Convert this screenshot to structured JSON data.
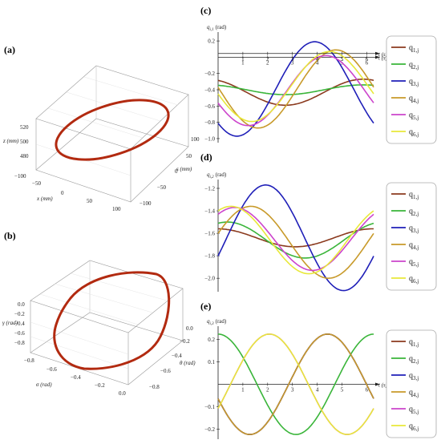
{
  "panel_labels": {
    "a": "(a)",
    "b": "(b)",
    "c": "(c)",
    "d": "(d)",
    "e": "(e)"
  },
  "chart_data": [
    {
      "id": "a",
      "type": "3d-line",
      "title": "",
      "xlabel": "x (mm)",
      "ylabel": "s (mm)",
      "zlabel": "z (mm)",
      "x_ticks": [
        "−100",
        "−50",
        "0",
        "50",
        "100"
      ],
      "y_ticks": [
        "−100",
        "−50",
        "0",
        "50",
        "100"
      ],
      "z_ticks": [
        "480",
        "500",
        "520"
      ],
      "xlim": [
        -100,
        100
      ],
      "ylim": [
        -100,
        100
      ],
      "zlim": [
        470,
        530
      ],
      "series": [
        {
          "color": "#b22a10"
        }
      ]
    },
    {
      "id": "b",
      "type": "3d-line",
      "title": "",
      "xlabel": "σ (rad)",
      "ylabel": "θ (rad)",
      "zlabel": "γ (rad)",
      "x_ticks": [
        "−0.8",
        "−0.6",
        "−0.4",
        "−0.2",
        "0.0"
      ],
      "y_ticks": [
        "−0.8",
        "−0.6",
        "−0.4",
        "−0.2",
        "0.0"
      ],
      "z_ticks": [
        "−0.8",
        "−0.6",
        "−0.4",
        "−0.2",
        "0.0"
      ],
      "series": [
        {
          "color": "#b22a10"
        }
      ]
    },
    {
      "id": "c",
      "type": "line",
      "ylabel": "q",
      "ylabel_sub": "i,1",
      "ylabel_unit": "(rad)",
      "xlabel": "t (s)",
      "x_ticks": [
        1,
        2,
        3,
        4,
        5,
        6
      ],
      "y_ticks": [
        0.2,
        -0.2,
        -0.4,
        -0.6,
        -0.8,
        -1.0
      ],
      "y_tick_labels": [
        "0.2",
        "−0.2",
        "−0.4",
        "−0.6",
        "−0.8",
        "−1.0"
      ],
      "xlim": [
        0,
        6.28
      ],
      "ylim": [
        -1.05,
        0.27
      ],
      "series": [
        {
          "color": "#8b3a1e",
          "values": "-0.43 + 0.16*sin(t + 2.0)"
        },
        {
          "color": "#3ab53a",
          "values": "-0.40 + 0.06*sin(t + 2.0)"
        },
        {
          "color": "#1f1fb8",
          "values": "-0.39 + 0.58*sin(t - 2.33)"
        },
        {
          "color": "#c89a2a",
          "values": "-0.39 + 0.48*sin(t + 3.1)"
        },
        {
          "color": "#cc44cc",
          "values": "-0.41 + 0.43*sin(t - 2.78)"
        },
        {
          "color": "#e8e83a",
          "values": "-0.36 + 0.43*sin(t - 2.93)"
        }
      ],
      "sampled": {
        "t": [
          0,
          1.05,
          2.09,
          3.14,
          4.19,
          5.24,
          6.28
        ],
        "q1": [
          -0.28,
          -0.27,
          -0.35,
          -0.48,
          -0.59,
          -0.57,
          -0.28
        ],
        "q2": [
          -0.35,
          -0.34,
          -0.38,
          -0.45,
          -0.46,
          -0.42,
          -0.35
        ],
        "q3": [
          -0.82,
          -0.95,
          -0.6,
          -0.05,
          0.18,
          -0.05,
          -0.82
        ],
        "q4": [
          -0.3,
          -0.7,
          -0.85,
          -0.45,
          0.05,
          0.08,
          -0.3
        ],
        "q5": [
          -0.56,
          -0.82,
          -0.72,
          -0.25,
          0.02,
          -0.05,
          -0.56
        ],
        "q6": [
          -0.48,
          -0.72,
          -0.78,
          -0.35,
          0.05,
          -0.02,
          -0.48
        ]
      }
    },
    {
      "id": "d",
      "type": "line",
      "ylabel": "q",
      "ylabel_sub": "i,2",
      "ylabel_unit": "(rad)",
      "xlabel": "t (s)",
      "x_ticks": [
        1,
        2,
        3,
        4,
        5,
        6
      ],
      "y_ticks": [
        -1.2,
        -1.4,
        -1.6,
        -1.8,
        -2.0
      ],
      "y_tick_labels": [
        "−1.2",
        "−1.4",
        "−1.6",
        "−1.8",
        "−2.0"
      ],
      "xlim": [
        0,
        6.28
      ],
      "ylim": [
        -2.12,
        -1.15
      ],
      "series": [
        {
          "color": "#8b3a1e",
          "values": "-1.64 + 0.08*sin(t + 1.6)"
        },
        {
          "color": "#3ab53a",
          "values": "-1.66 + 0.16*sin(t + 1.2)"
        },
        {
          "color": "#1f1fb8",
          "values": "-1.64 + 0.47*sin(t - 0.35)"
        },
        {
          "color": "#c89a2a",
          "values": "-1.68 + 0.32*sin(t + 0.25)"
        },
        {
          "color": "#cc44cc",
          "values": "-1.65 + 0.28*sin(t + 0.9)"
        },
        {
          "color": "#e8e83a",
          "values": "-1.66 + 0.30*sin(t + 1.05)"
        }
      ],
      "sampled": {
        "t": [
          0,
          1.05,
          2.09,
          3.14,
          4.19,
          5.24,
          6.28
        ],
        "q1": [
          -1.56,
          -1.57,
          -1.65,
          -1.72,
          -1.72,
          -1.68,
          -1.56
        ],
        "q2": [
          -1.51,
          -1.52,
          -1.6,
          -1.76,
          -1.82,
          -1.74,
          -1.51
        ],
        "q3": [
          -1.8,
          -1.29,
          -1.18,
          -1.45,
          -1.96,
          -2.06,
          -1.8
        ],
        "q4": [
          -1.6,
          -1.38,
          -1.38,
          -1.71,
          -1.98,
          -1.98,
          -1.6
        ],
        "q5": [
          -1.43,
          -1.42,
          -1.62,
          -1.86,
          -1.94,
          -1.76,
          -1.43
        ],
        "q6": [
          -1.41,
          -1.4,
          -1.62,
          -1.91,
          -1.96,
          -1.75,
          -1.41
        ]
      }
    },
    {
      "id": "e",
      "type": "line",
      "ylabel": "q",
      "ylabel_sub": "i,3",
      "ylabel_unit": "(rad)",
      "xlabel": "t (s)",
      "x_ticks": [
        1,
        2,
        3,
        4,
        5,
        6
      ],
      "y_ticks": [
        0.2,
        0.1,
        -0.1,
        -0.2
      ],
      "y_tick_labels": [
        "0.2",
        "0.1",
        "−0.1",
        "−0.2"
      ],
      "xlim": [
        0,
        6.28
      ],
      "ylim": [
        -0.245,
        0.245
      ],
      "series": [
        {
          "color": "#8b3a1e",
          "values": "0.224*sin(t - 2.85)"
        },
        {
          "color": "#3ab53a",
          "values": "0.224*sin(t + 1.57)"
        },
        {
          "color": "#1f1fb8",
          "values": "0.224*sin(t - 2.85)"
        },
        {
          "color": "#c89a2a",
          "values": "0.224*sin(t - 2.85)"
        },
        {
          "color": "#cc44cc",
          "values": "0.224*sin(t - 0.5)"
        },
        {
          "color": "#e8e83a",
          "values": "0.224*sin(t - 0.5)"
        }
      ],
      "sampled": {
        "t": [
          0,
          1.05,
          2.09,
          3.14,
          4.19,
          5.24,
          6.28
        ],
        "q1": [
          -0.06,
          -0.22,
          -0.15,
          0.06,
          0.22,
          0.15,
          -0.06
        ],
        "q2": [
          0.22,
          0.11,
          -0.11,
          -0.22,
          -0.11,
          0.11,
          0.22
        ],
        "q5": [
          -0.11,
          0.11,
          0.22,
          0.11,
          -0.11,
          -0.22,
          -0.11
        ]
      }
    }
  ],
  "legend": {
    "entries": [
      {
        "label": "q",
        "sub": "1,j",
        "color": "#8b3a1e"
      },
      {
        "label": "q",
        "sub": "2,j",
        "color": "#3ab53a"
      },
      {
        "label": "q",
        "sub": "3,j",
        "color": "#1f1fb8"
      },
      {
        "label": "q",
        "sub": "4,j",
        "color": "#c89a2a"
      },
      {
        "label": "q",
        "sub": "5,j",
        "color": "#cc44cc"
      },
      {
        "label": "q",
        "sub": "6,j",
        "color": "#e8e83a"
      }
    ]
  }
}
